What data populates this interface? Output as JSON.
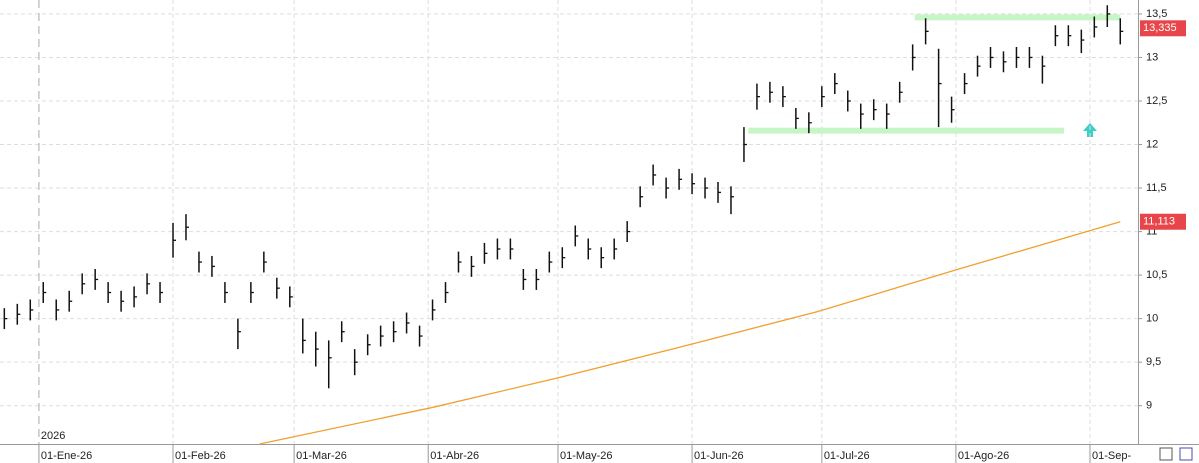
{
  "chart_data": {
    "type": "ohlc",
    "year_label": "2026",
    "x": [
      -8,
      -5,
      -2,
      1,
      4,
      7,
      10,
      13,
      16,
      19,
      22,
      25,
      28,
      31,
      34,
      37,
      40,
      43,
      46,
      49,
      52,
      55,
      58,
      61,
      64,
      67,
      70,
      73,
      76,
      79,
      82,
      85,
      88,
      91,
      94,
      97,
      100,
      103,
      106,
      109,
      112,
      115,
      118,
      121,
      124,
      127,
      130,
      133,
      136,
      139,
      142,
      145,
      148,
      151,
      154,
      157,
      160,
      163,
      166,
      169,
      172,
      175,
      178,
      181,
      184,
      187,
      190,
      193,
      196,
      199,
      202,
      205,
      208,
      211,
      214,
      217,
      220,
      223,
      226,
      229,
      232,
      235,
      238,
      241,
      244,
      247,
      250
    ],
    "high": [
      10.12,
      10.17,
      10.22,
      10.42,
      10.22,
      10.32,
      10.52,
      10.57,
      10.42,
      10.32,
      10.37,
      10.52,
      10.42,
      11.1,
      11.2,
      10.77,
      10.72,
      10.42,
      10.0,
      10.42,
      10.77,
      10.47,
      10.37,
      10.0,
      9.85,
      9.75,
      9.97,
      9.65,
      9.82,
      9.92,
      9.97,
      10.07,
      9.92,
      10.22,
      10.42,
      10.77,
      10.72,
      10.87,
      10.92,
      10.92,
      10.57,
      10.57,
      10.77,
      10.82,
      11.07,
      10.92,
      10.82,
      10.92,
      11.12,
      11.52,
      11.77,
      11.62,
      11.72,
      11.67,
      11.62,
      11.57,
      11.52,
      12.2,
      12.7,
      12.72,
      12.67,
      12.42,
      12.37,
      12.67,
      12.82,
      12.62,
      12.47,
      12.52,
      12.47,
      12.72,
      13.15,
      13.45,
      13.1,
      12.55,
      12.82,
      13.02,
      13.12,
      13.07,
      13.12,
      13.12,
      13.02,
      13.37,
      13.37,
      13.32,
      13.47,
      13.6,
      13.45
    ],
    "low": [
      9.88,
      9.93,
      9.98,
      10.18,
      9.98,
      10.08,
      10.28,
      10.33,
      10.18,
      10.08,
      10.13,
      10.28,
      10.18,
      10.7,
      10.9,
      10.53,
      10.48,
      10.18,
      9.65,
      10.18,
      10.53,
      10.23,
      10.13,
      9.6,
      9.45,
      9.2,
      9.73,
      9.35,
      9.58,
      9.68,
      9.73,
      9.83,
      9.68,
      9.98,
      10.18,
      10.53,
      10.48,
      10.63,
      10.68,
      10.68,
      10.33,
      10.33,
      10.53,
      10.58,
      10.83,
      10.68,
      10.58,
      10.68,
      10.88,
      11.28,
      11.53,
      11.38,
      11.48,
      11.43,
      11.38,
      11.33,
      11.2,
      11.8,
      12.4,
      12.48,
      12.43,
      12.18,
      12.13,
      12.43,
      12.58,
      12.38,
      12.18,
      12.28,
      12.18,
      12.48,
      12.85,
      13.15,
      12.2,
      12.25,
      12.58,
      12.78,
      12.88,
      12.83,
      12.88,
      12.88,
      12.7,
      13.13,
      13.13,
      13.05,
      13.23,
      13.35,
      13.15
    ],
    "close": [
      10.0,
      10.05,
      10.1,
      10.3,
      10.1,
      10.2,
      10.4,
      10.45,
      10.3,
      10.2,
      10.25,
      10.4,
      10.3,
      10.9,
      11.05,
      10.65,
      10.6,
      10.3,
      9.85,
      10.3,
      10.65,
      10.35,
      10.25,
      9.75,
      9.65,
      9.55,
      9.85,
      9.5,
      9.7,
      9.8,
      9.85,
      9.95,
      9.8,
      10.1,
      10.3,
      10.65,
      10.6,
      10.75,
      10.8,
      10.8,
      10.45,
      10.45,
      10.65,
      10.7,
      10.95,
      10.8,
      10.7,
      10.8,
      11.0,
      11.4,
      11.65,
      11.5,
      11.6,
      11.55,
      11.5,
      11.45,
      11.4,
      12.0,
      12.55,
      12.6,
      12.55,
      12.3,
      12.25,
      12.55,
      12.7,
      12.5,
      12.35,
      12.4,
      12.35,
      12.6,
      13.0,
      13.3,
      12.7,
      12.4,
      12.7,
      12.9,
      13.0,
      12.95,
      13.0,
      13.0,
      12.9,
      13.25,
      13.25,
      13.2,
      13.35,
      13.5,
      13.3
    ],
    "bar_color": "#111111",
    "overlay": {
      "color": "#f0a030",
      "x": [
        51,
        91,
        120,
        148,
        180,
        212,
        250
      ],
      "values": [
        8.56,
        8.98,
        9.32,
        9.67,
        10.08,
        10.56,
        11.113
      ]
    },
    "levels": [
      {
        "value": 13.46,
        "x": [
          202.5,
          250
        ],
        "color": "#c6f5c6"
      },
      {
        "value": 12.16,
        "x": [
          164,
          237
        ],
        "color": "#c6f5c6"
      }
    ],
    "price_labels": [
      {
        "value": 13.335,
        "label": "13,335",
        "color": "#e8454a"
      },
      {
        "value": 11.113,
        "label": "11,113",
        "color": "#e8454a"
      }
    ],
    "xlim": [
      -9,
      254.1
    ],
    "ylim": [
      8.56,
      13.66
    ],
    "xticks": [
      {
        "value": 0,
        "label": "01-Ene-26"
      },
      {
        "value": 31,
        "label": "01-Feb-26"
      },
      {
        "value": 59,
        "label": "01-Mar-26"
      },
      {
        "value": 90,
        "label": "01-Abr-26"
      },
      {
        "value": 120,
        "label": "01-May-26"
      },
      {
        "value": 151,
        "label": "01-Jun-26"
      },
      {
        "value": 181,
        "label": "01-Jul-26"
      },
      {
        "value": 212,
        "label": "01-Ago-26"
      },
      {
        "value": 243,
        "label": "01-Sep-"
      }
    ],
    "yticks": [
      9,
      {
        "value": 9.5,
        "label": "9,5"
      },
      10,
      {
        "value": 10.5,
        "label": "10,5"
      },
      11,
      {
        "value": 11.5,
        "label": "11,5"
      },
      12,
      {
        "value": 12.5,
        "label": "12,5"
      },
      13,
      {
        "value": 13.5,
        "label": "13,5"
      }
    ],
    "grid": true
  }
}
